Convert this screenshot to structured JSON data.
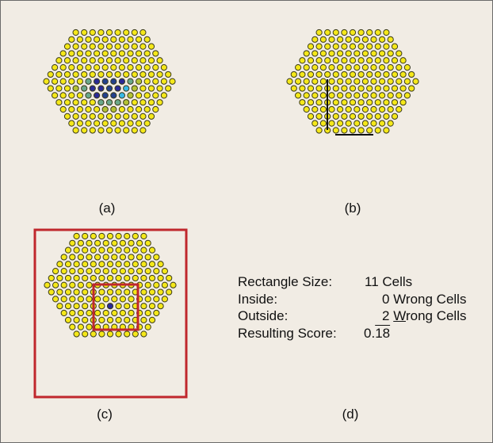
{
  "panels": {
    "a": "(a)",
    "b": "(b)",
    "c": "(c)",
    "d": "(d)"
  },
  "info": {
    "rectangle_size_label": "Rectangle Size:",
    "rectangle_size_value": "11 Cells",
    "inside_label": "Inside:",
    "inside_value": "0 Wrong Cells",
    "outside_label": "Outside:",
    "outside_count": "2",
    "outside_space": " ",
    "outside_W": "W",
    "outside_rest": "rong Cells",
    "score_label": "Resulting Score:",
    "score_prefix": "0.",
    "score_repeating": "18"
  },
  "colors": {
    "background": "#f1ece4",
    "cell_yellow": "#f5e81a",
    "cell_outline": "#3a3a1a",
    "cell_blue": "#2a2a96",
    "cell_navy": "#24418c",
    "cell_cyan": "#38b8e6",
    "cell_green": "#6aa88a",
    "cell_olive": "#b4c234",
    "rectangle_red": "#c0272d"
  }
}
